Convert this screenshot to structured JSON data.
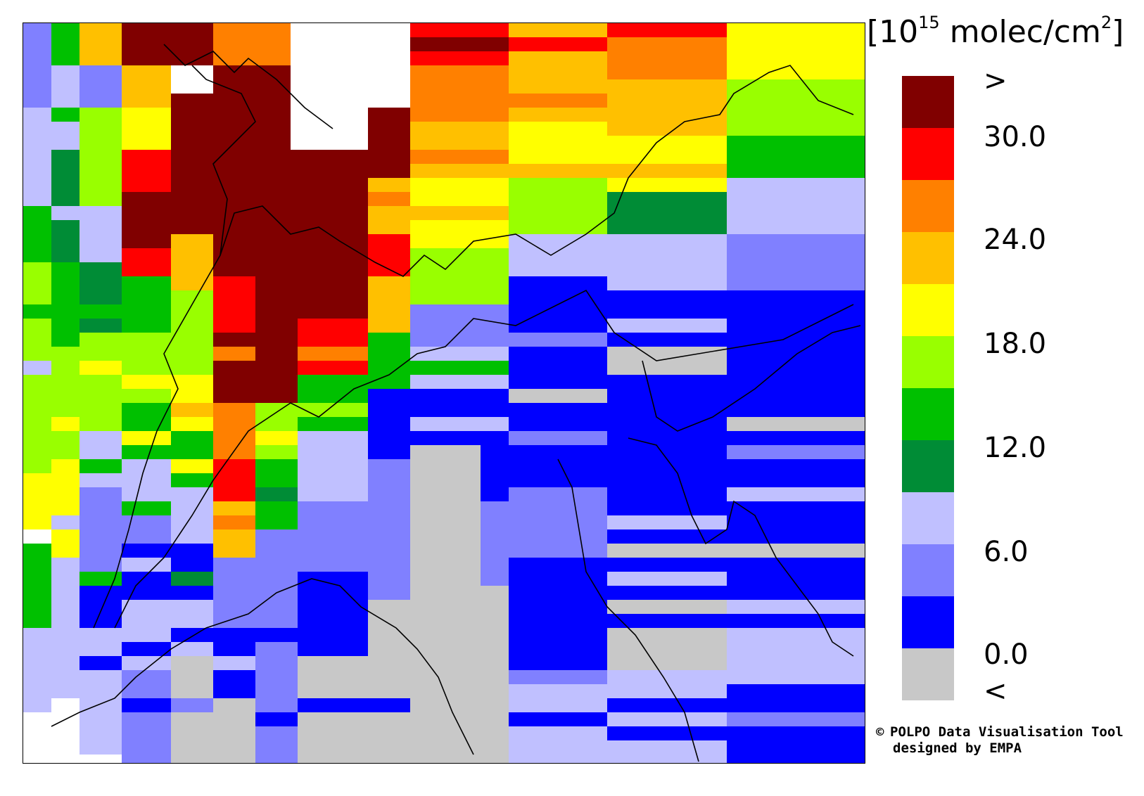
{
  "colorbar": {
    "title_prefix": "[10",
    "title_exp": "15",
    "title_suffix": " molec/cm",
    "title_exp2": "2",
    "title_close": "]",
    "labels": [
      ">",
      "30.0",
      "24.0",
      "18.0",
      "12.0",
      "6.0",
      "0.0",
      "<"
    ],
    "colors": [
      "#800000",
      "#ff0000",
      "#ff8000",
      "#ffc000",
      "#ffff00",
      "#99ff00",
      "#00c000",
      "#008c36",
      "#c0c0ff",
      "#8080ff",
      "#0000ff",
      "#c8c8c8"
    ]
  },
  "credit": {
    "line1": "POLPO Data Visualisation Tool",
    "line2": "designed by EMPA",
    "symbol": "©"
  },
  "map": {
    "description_palette": {
      "maroon": "#800000",
      "red": "#ff0000",
      "orange": "#ff8000",
      "amber": "#ffc000",
      "yellow": "#ffff00",
      "lime": "#99ff00",
      "green": "#00c000",
      "darkgreen": "#008c36",
      "lavender": "#c0c0ff",
      "periwinkle": "#8080ff",
      "blue": "#0000ff",
      "gray": "#c8c8c8",
      "white": "#ffffff"
    }
  }
}
